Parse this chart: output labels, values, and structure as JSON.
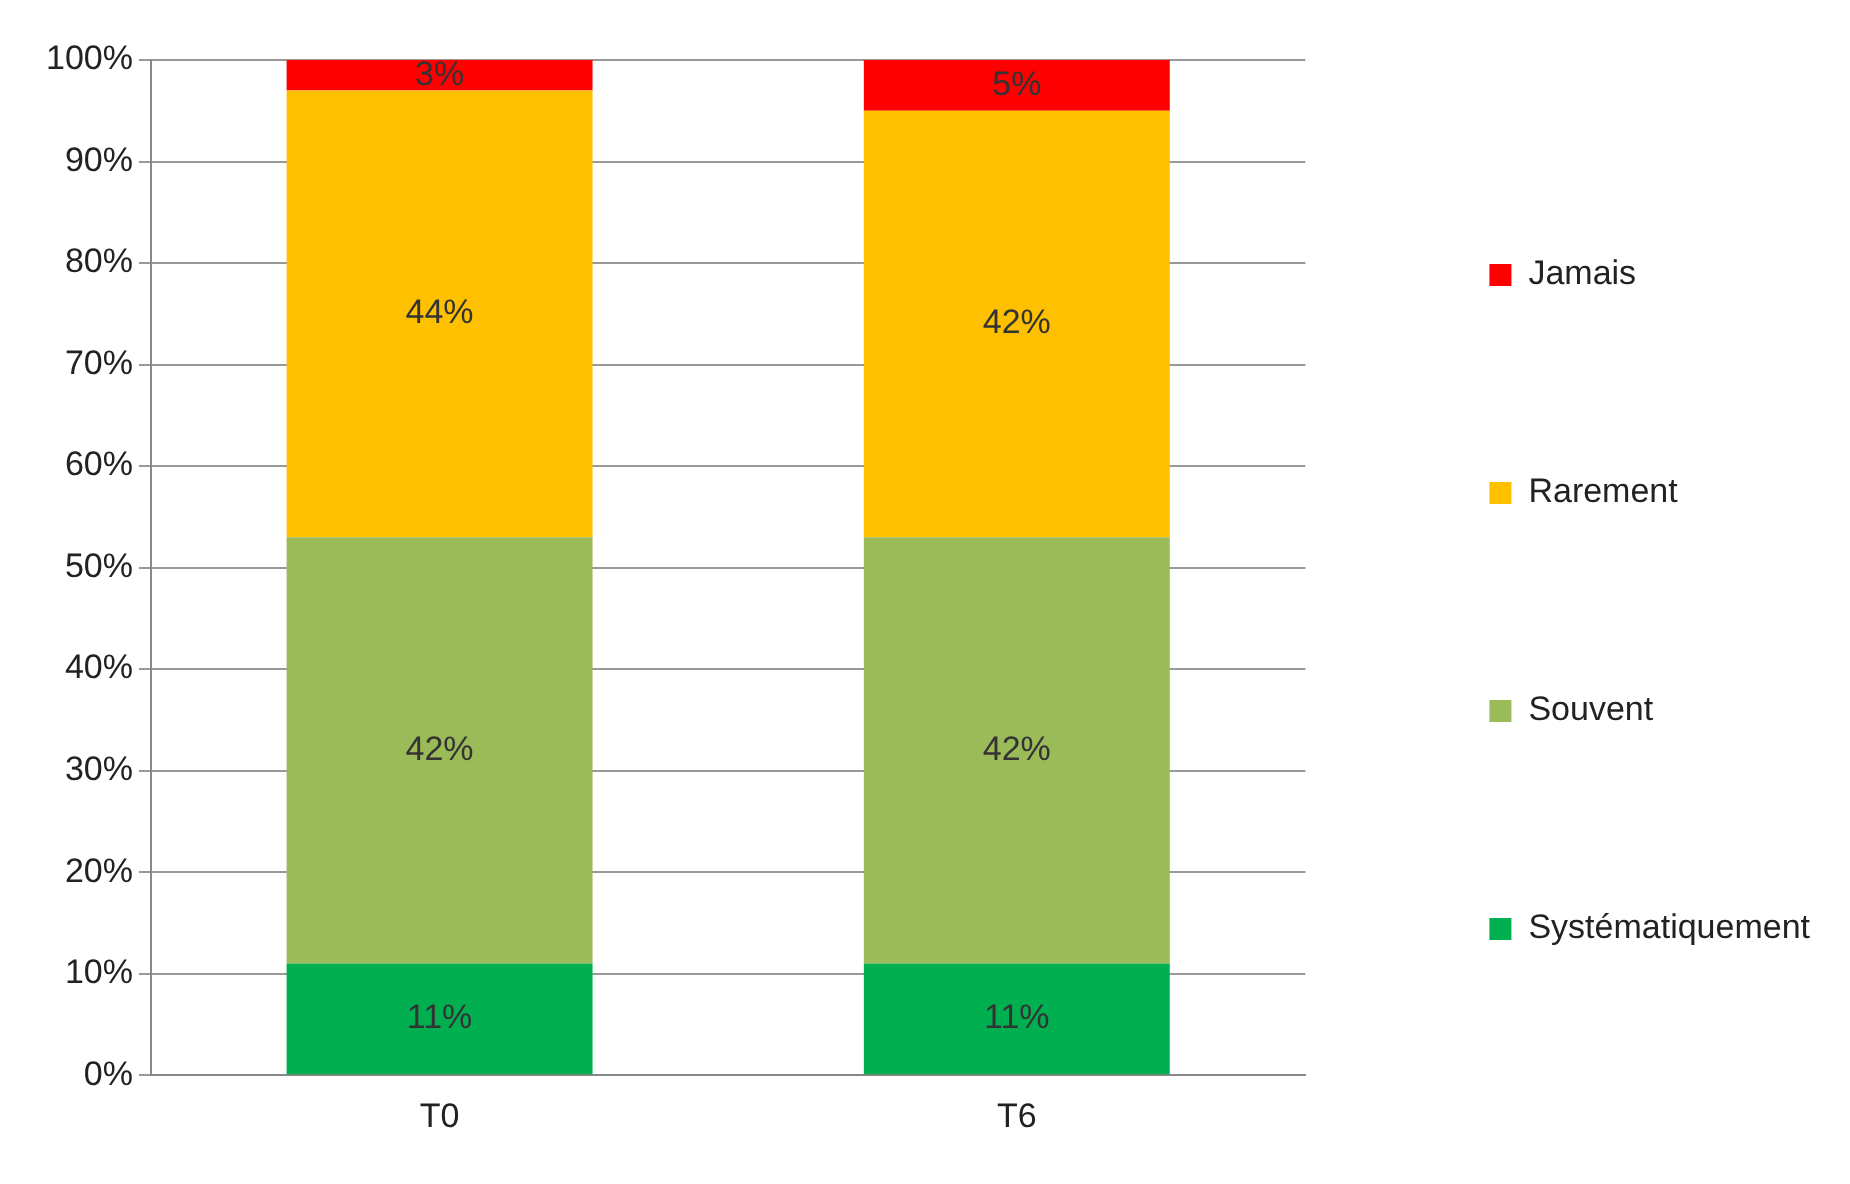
{
  "chart_data": {
    "type": "bar",
    "stacked": true,
    "categories": [
      "T0",
      "T6"
    ],
    "series": [
      {
        "name": "Systématiquement",
        "color": "#00b050",
        "values": [
          11,
          11
        ],
        "value_labels": [
          "11%",
          "11%"
        ]
      },
      {
        "name": "Souvent",
        "color": "#9bbb59",
        "values": [
          42,
          42
        ],
        "value_labels": [
          "42%",
          "42%"
        ]
      },
      {
        "name": "Rarement",
        "color": "#ffc000",
        "values": [
          44,
          42
        ],
        "value_labels": [
          "44%",
          "42%"
        ]
      },
      {
        "name": "Jamais",
        "color": "#ff0000",
        "values": [
          3,
          5
        ],
        "value_labels": [
          "3%",
          "5%"
        ]
      }
    ],
    "ylim": [
      0,
      100
    ],
    "yticks": [
      {
        "value": 0,
        "label": "0%"
      },
      {
        "value": 10,
        "label": "10%"
      },
      {
        "value": 20,
        "label": "20%"
      },
      {
        "value": 30,
        "label": "30%"
      },
      {
        "value": 40,
        "label": "40%"
      },
      {
        "value": 50,
        "label": "50%"
      },
      {
        "value": 60,
        "label": "60%"
      },
      {
        "value": 70,
        "label": "70%"
      },
      {
        "value": 80,
        "label": "80%"
      },
      {
        "value": 90,
        "label": "90%"
      },
      {
        "value": 100,
        "label": "100%"
      }
    ],
    "grid": "y",
    "legend": "right"
  }
}
